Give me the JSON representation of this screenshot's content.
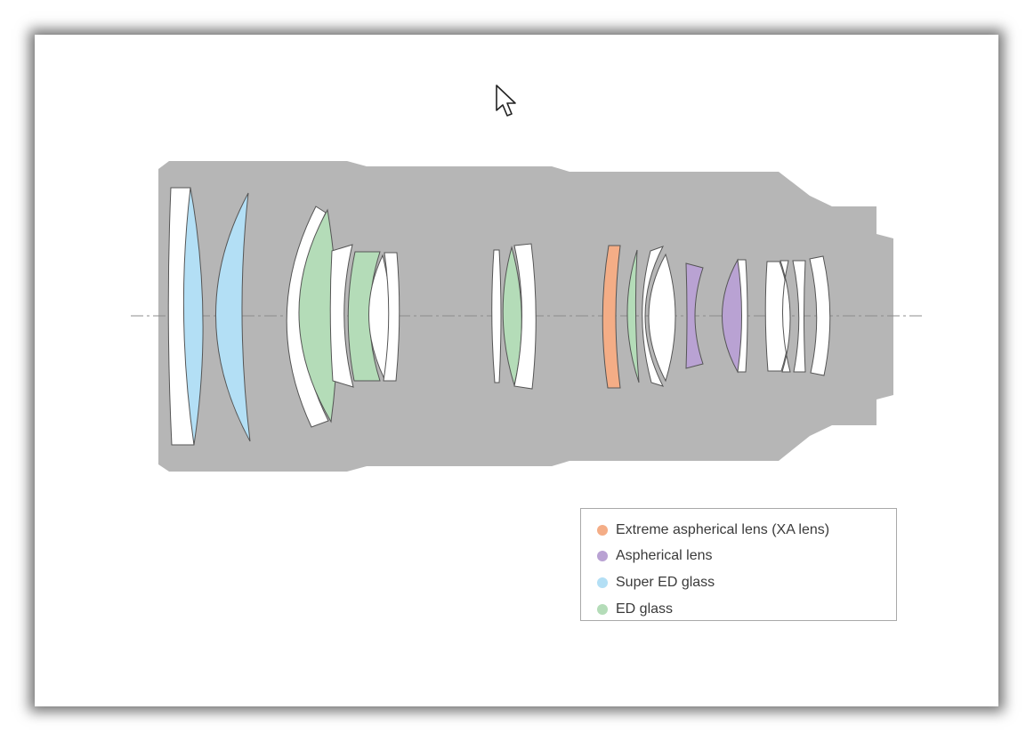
{
  "legend": {
    "items": [
      {
        "key": "xa",
        "label": "Extreme aspherical lens (XA lens)",
        "color": "#f4ad86"
      },
      {
        "key": "asph",
        "label": "Aspherical lens",
        "color": "#b9a2d3"
      },
      {
        "key": "sed",
        "label": "Super ED glass",
        "color": "#b3dff5"
      },
      {
        "key": "ed",
        "label": "ED glass",
        "color": "#b4dcb8"
      }
    ]
  },
  "colors": {
    "barrel": "#b6b6b6",
    "glass_plain": "#ffffff",
    "outline": "#555555",
    "optical_axis": "#8c8c8c",
    "border": "#a9a9a9"
  },
  "icons": {
    "pointer": "mouse-pointer-icon"
  }
}
